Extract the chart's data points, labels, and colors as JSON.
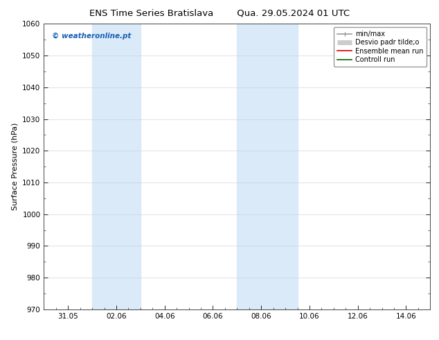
{
  "title_left": "ENS Time Series Bratislava",
  "title_right": "Qua. 29.05.2024 01 UTC",
  "ylabel": "Surface Pressure (hPa)",
  "ylim": [
    970,
    1060
  ],
  "yticks": [
    970,
    980,
    990,
    1000,
    1010,
    1020,
    1030,
    1040,
    1050,
    1060
  ],
  "xtick_labels": [
    "31.05",
    "02.06",
    "04.06",
    "06.06",
    "08.06",
    "10.06",
    "12.06",
    "14.06"
  ],
  "xtick_positions": [
    1,
    3,
    5,
    7,
    9,
    11,
    13,
    15
  ],
  "xlim": [
    0,
    16
  ],
  "shaded_bands": [
    {
      "x_start": 2.0,
      "x_end": 4.0
    },
    {
      "x_start": 8.0,
      "x_end": 10.5
    }
  ],
  "shade_color": "#daeaf8",
  "watermark": "© weatheronline.pt",
  "watermark_color": "#1a5fb4",
  "legend_items": [
    {
      "label": "min/max",
      "color": "#999999",
      "lw": 1.2
    },
    {
      "label": "Desvio padr tilde;o",
      "color": "#cccccc",
      "lw": 5
    },
    {
      "label": "Ensemble mean run",
      "color": "#cc0000",
      "lw": 1.2
    },
    {
      "label": "Controll run",
      "color": "#006600",
      "lw": 1.2
    }
  ],
  "bg_color": "#ffffff",
  "grid_color": "#cccccc",
  "title_fontsize": 9.5,
  "label_fontsize": 8,
  "tick_fontsize": 7.5,
  "watermark_fontsize": 7.5,
  "legend_fontsize": 7
}
